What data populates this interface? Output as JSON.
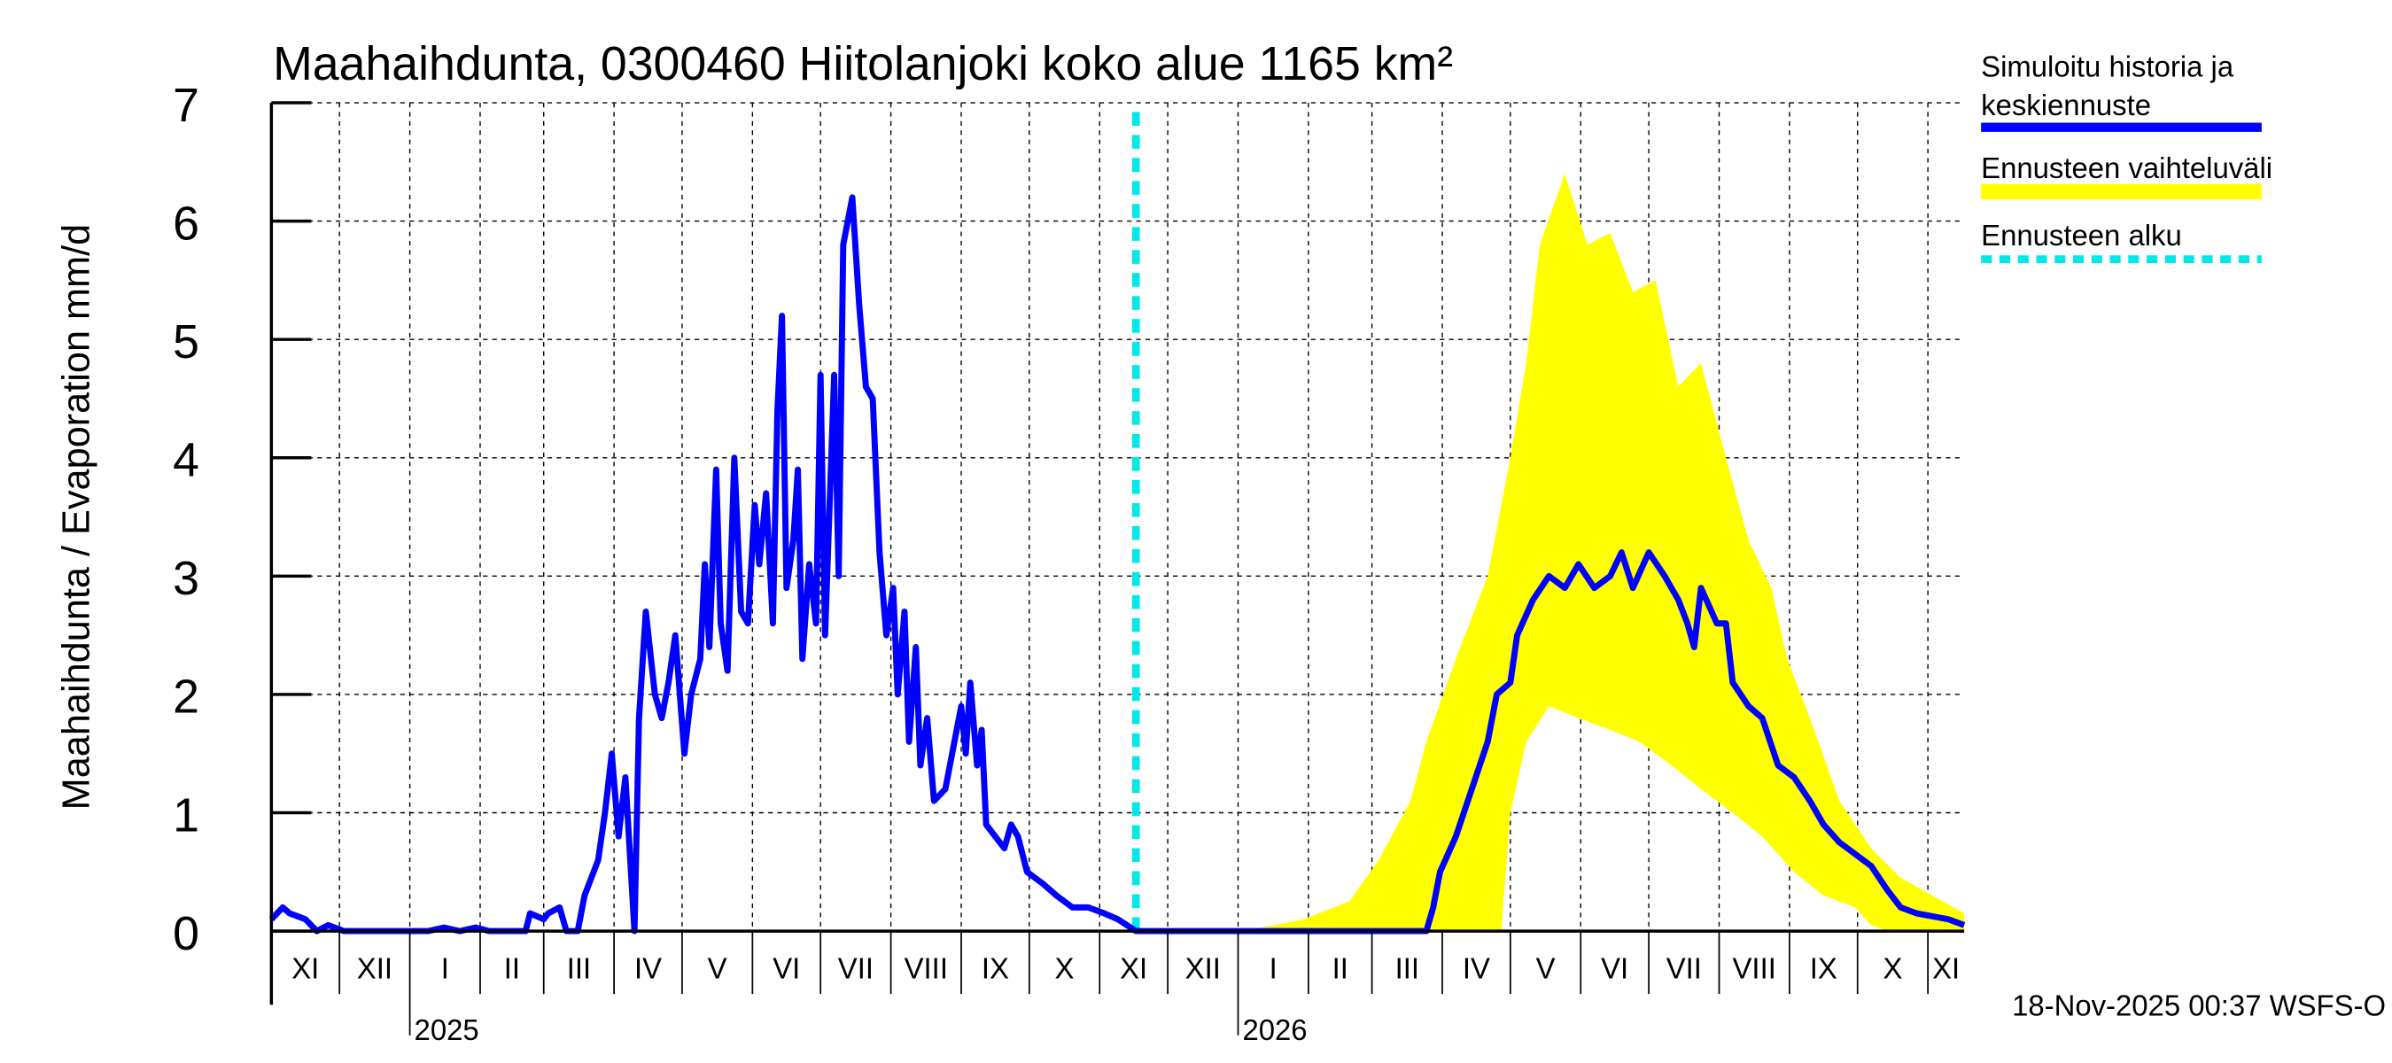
{
  "chart_data": {
    "type": "line",
    "title": "Maahaihdunta, 0300460 Hiitolanjoki koko alue 1165 km²",
    "ylabel": "Maahaihdunta / Evaporation   mm/d",
    "ylim": [
      0,
      7
    ],
    "yticks": [
      0,
      1,
      2,
      3,
      4,
      5,
      6,
      7
    ],
    "xlim": [
      "2024-11-01",
      "2026-11-17"
    ],
    "grid": true,
    "legend_position": "right",
    "month_labels": [
      "XI",
      "XII",
      "I",
      "II",
      "III",
      "IV",
      "V",
      "VI",
      "VII",
      "VIII",
      "IX",
      "X",
      "XI",
      "XII",
      "I",
      "II",
      "III",
      "IV",
      "V",
      "VI",
      "VII",
      "VIII",
      "IX",
      "X",
      "XI"
    ],
    "year_labels": [
      {
        "label": "2025",
        "date": "2025-01-01"
      },
      {
        "label": "2026",
        "date": "2026-01-01"
      }
    ],
    "forecast_start": "2025-11-17",
    "colors": {
      "history": "#0000ff",
      "range": "#ffff00",
      "forecast_start": "#00e8e8"
    },
    "legend": [
      {
        "label_line1": "Simuloitu historia ja",
        "label_line2": "keskiennuste",
        "color": "#0000ff"
      },
      {
        "label_line1": "Ennusteen vaihteluväli",
        "color": "#ffff00"
      },
      {
        "label_line1": "Ennusteen alku",
        "color": "#00e8e8"
      }
    ],
    "series": [
      {
        "name": "Simuloitu historia ja keskiennuste",
        "points": [
          [
            "2024-11-01",
            0.1
          ],
          [
            "2024-11-06",
            0.2
          ],
          [
            "2024-11-09",
            0.15
          ],
          [
            "2024-11-16",
            0.1
          ],
          [
            "2024-11-21",
            0
          ],
          [
            "2024-11-26",
            0.05
          ],
          [
            "2024-12-03",
            0
          ],
          [
            "2025-01-09",
            0
          ],
          [
            "2025-01-16",
            0.03
          ],
          [
            "2025-01-23",
            0
          ],
          [
            "2025-01-30",
            0.03
          ],
          [
            "2025-02-05",
            0
          ],
          [
            "2025-02-21",
            0
          ],
          [
            "2025-02-23",
            0.15
          ],
          [
            "2025-03-01",
            0.1
          ],
          [
            "2025-03-03",
            0.15
          ],
          [
            "2025-03-08",
            0.2
          ],
          [
            "2025-03-11",
            0
          ],
          [
            "2025-03-16",
            0
          ],
          [
            "2025-03-19",
            0.3
          ],
          [
            "2025-03-25",
            0.6
          ],
          [
            "2025-03-28",
            1.0
          ],
          [
            "2025-03-31",
            1.5
          ],
          [
            "2025-04-03",
            0.8
          ],
          [
            "2025-04-06",
            1.3
          ],
          [
            "2025-04-10",
            0
          ],
          [
            "2025-04-12",
            1.8
          ],
          [
            "2025-04-15",
            2.7
          ],
          [
            "2025-04-19",
            2.0
          ],
          [
            "2025-04-22",
            1.8
          ],
          [
            "2025-04-25",
            2.1
          ],
          [
            "2025-04-28",
            2.5
          ],
          [
            "2025-05-02",
            1.5
          ],
          [
            "2025-05-05",
            2.0
          ],
          [
            "2025-05-09",
            2.3
          ],
          [
            "2025-05-11",
            3.1
          ],
          [
            "2025-05-13",
            2.4
          ],
          [
            "2025-05-16",
            3.9
          ],
          [
            "2025-05-18",
            2.6
          ],
          [
            "2025-05-21",
            2.2
          ],
          [
            "2025-05-24",
            4.0
          ],
          [
            "2025-05-27",
            2.7
          ],
          [
            "2025-05-30",
            2.6
          ],
          [
            "2025-06-02",
            3.6
          ],
          [
            "2025-06-04",
            3.1
          ],
          [
            "2025-06-07",
            3.7
          ],
          [
            "2025-06-10",
            2.6
          ],
          [
            "2025-06-12",
            4.4
          ],
          [
            "2025-06-14",
            5.2
          ],
          [
            "2025-06-16",
            2.9
          ],
          [
            "2025-06-19",
            3.3
          ],
          [
            "2025-06-21",
            3.9
          ],
          [
            "2025-06-23",
            2.3
          ],
          [
            "2025-06-26",
            3.1
          ],
          [
            "2025-06-29",
            2.6
          ],
          [
            "2025-07-01",
            4.7
          ],
          [
            "2025-07-03",
            2.5
          ],
          [
            "2025-07-05",
            3.6
          ],
          [
            "2025-07-07",
            4.7
          ],
          [
            "2025-07-09",
            3.0
          ],
          [
            "2025-07-11",
            5.8
          ],
          [
            "2025-07-15",
            6.2
          ],
          [
            "2025-07-18",
            5.3
          ],
          [
            "2025-07-21",
            4.6
          ],
          [
            "2025-07-24",
            4.5
          ],
          [
            "2025-07-27",
            3.2
          ],
          [
            "2025-07-30",
            2.5
          ],
          [
            "2025-08-02",
            2.9
          ],
          [
            "2025-08-04",
            2.0
          ],
          [
            "2025-08-07",
            2.7
          ],
          [
            "2025-08-09",
            1.6
          ],
          [
            "2025-08-12",
            2.4
          ],
          [
            "2025-08-14",
            1.4
          ],
          [
            "2025-08-17",
            1.8
          ],
          [
            "2025-08-20",
            1.1
          ],
          [
            "2025-08-25",
            1.2
          ],
          [
            "2025-08-28",
            1.5
          ],
          [
            "2025-09-01",
            1.9
          ],
          [
            "2025-09-03",
            1.5
          ],
          [
            "2025-09-05",
            2.1
          ],
          [
            "2025-09-08",
            1.4
          ],
          [
            "2025-09-10",
            1.7
          ],
          [
            "2025-09-12",
            0.9
          ],
          [
            "2025-09-16",
            0.8
          ],
          [
            "2025-09-20",
            0.7
          ],
          [
            "2025-09-23",
            0.9
          ],
          [
            "2025-09-26",
            0.8
          ],
          [
            "2025-09-30",
            0.5
          ],
          [
            "2025-10-07",
            0.4
          ],
          [
            "2025-10-13",
            0.3
          ],
          [
            "2025-10-20",
            0.2
          ],
          [
            "2025-10-27",
            0.2
          ],
          [
            "2025-11-03",
            0.15
          ],
          [
            "2025-11-09",
            0.1
          ],
          [
            "2025-11-17",
            0
          ],
          [
            "2025-11-30",
            0
          ],
          [
            "2026-03-25",
            0
          ],
          [
            "2026-03-28",
            0.2
          ],
          [
            "2026-03-31",
            0.5
          ],
          [
            "2026-04-07",
            0.8
          ],
          [
            "2026-04-14",
            1.2
          ],
          [
            "2026-04-21",
            1.6
          ],
          [
            "2026-04-25",
            2.0
          ],
          [
            "2026-05-01",
            2.1
          ],
          [
            "2026-05-04",
            2.5
          ],
          [
            "2026-05-11",
            2.8
          ],
          [
            "2026-05-18",
            3.0
          ],
          [
            "2026-05-25",
            2.9
          ],
          [
            "2026-05-31",
            3.1
          ],
          [
            "2026-06-07",
            2.9
          ],
          [
            "2026-06-14",
            3.0
          ],
          [
            "2026-06-19",
            3.2
          ],
          [
            "2026-06-24",
            2.9
          ],
          [
            "2026-07-01",
            3.2
          ],
          [
            "2026-07-08",
            3.0
          ],
          [
            "2026-07-14",
            2.8
          ],
          [
            "2026-07-18",
            2.6
          ],
          [
            "2026-07-21",
            2.4
          ],
          [
            "2026-07-24",
            2.9
          ],
          [
            "2026-07-31",
            2.6
          ],
          [
            "2026-08-04",
            2.6
          ],
          [
            "2026-08-07",
            2.1
          ],
          [
            "2026-08-14",
            1.9
          ],
          [
            "2026-08-20",
            1.8
          ],
          [
            "2026-08-27",
            1.4
          ],
          [
            "2026-09-03",
            1.3
          ],
          [
            "2026-09-10",
            1.1
          ],
          [
            "2026-09-16",
            0.9
          ],
          [
            "2026-09-23",
            0.75
          ],
          [
            "2026-09-30",
            0.65
          ],
          [
            "2026-10-07",
            0.55
          ],
          [
            "2026-10-14",
            0.35
          ],
          [
            "2026-10-20",
            0.2
          ],
          [
            "2026-10-27",
            0.15
          ],
          [
            "2026-11-10",
            0.1
          ],
          [
            "2026-11-17",
            0.05
          ]
        ]
      },
      {
        "name": "Ennusteen vaihteluväli",
        "upper": [
          [
            "2025-11-30",
            0
          ],
          [
            "2026-01-09",
            0.02
          ],
          [
            "2026-01-30",
            0.1
          ],
          [
            "2026-02-19",
            0.25
          ],
          [
            "2026-03-04",
            0.6
          ],
          [
            "2026-03-18",
            1.1
          ],
          [
            "2026-03-25",
            1.6
          ],
          [
            "2026-04-07",
            2.3
          ],
          [
            "2026-04-21",
            3.0
          ],
          [
            "2026-05-01",
            4.0
          ],
          [
            "2026-05-08",
            4.8
          ],
          [
            "2026-05-14",
            5.8
          ],
          [
            "2026-05-25",
            6.4
          ],
          [
            "2026-06-04",
            5.8
          ],
          [
            "2026-06-14",
            5.9
          ],
          [
            "2026-06-24",
            5.4
          ],
          [
            "2026-07-04",
            5.5
          ],
          [
            "2026-07-14",
            4.6
          ],
          [
            "2026-07-24",
            4.8
          ],
          [
            "2026-08-04",
            4.0
          ],
          [
            "2026-08-14",
            3.3
          ],
          [
            "2026-08-24",
            2.9
          ],
          [
            "2026-08-31",
            2.3
          ],
          [
            "2026-09-10",
            1.8
          ],
          [
            "2026-09-23",
            1.1
          ],
          [
            "2026-10-07",
            0.7
          ],
          [
            "2026-10-20",
            0.45
          ],
          [
            "2026-11-03",
            0.3
          ],
          [
            "2026-11-17",
            0.15
          ]
        ],
        "lower": [
          [
            "2025-11-30",
            0
          ],
          [
            "2026-04-27",
            0
          ],
          [
            "2026-05-01",
            1.0
          ],
          [
            "2026-05-08",
            1.6
          ],
          [
            "2026-05-18",
            1.9
          ],
          [
            "2026-05-31",
            1.8
          ],
          [
            "2026-06-14",
            1.7
          ],
          [
            "2026-06-27",
            1.6
          ],
          [
            "2026-07-11",
            1.4
          ],
          [
            "2026-07-24",
            1.2
          ],
          [
            "2026-08-07",
            1.0
          ],
          [
            "2026-08-20",
            0.8
          ],
          [
            "2026-09-03",
            0.5
          ],
          [
            "2026-09-16",
            0.3
          ],
          [
            "2026-09-30",
            0.2
          ],
          [
            "2026-10-07",
            0.05
          ],
          [
            "2026-10-14",
            0
          ],
          [
            "2026-11-17",
            0
          ]
        ]
      }
    ]
  },
  "footer": {
    "timestamp": "18-Nov-2025 00:37 WSFS-O"
  }
}
